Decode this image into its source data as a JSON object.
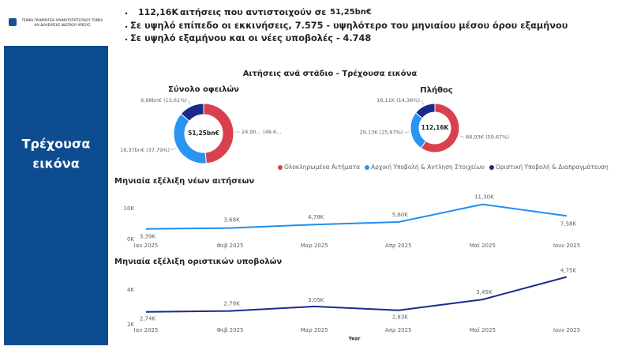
{
  "sidebar": {
    "logo_text": [
      "ΓΕΝΙΚΗ ΓΡΑΜΜΑΤΕΙΑ ΧΡΗΜΑΤΟΠΙΣΤΩΤΙΚΟΥ ΤΟΜΕΑ",
      "ΚΑΙ ΔΙΑΧΕΙΡΙΣΗΣ ΙΔΙΩΤΙΚΟΥ ΧΡΕΟΥΣ"
    ],
    "title": [
      "Τρέχουσα",
      "εικόνα"
    ]
  },
  "bullets": [
    [
      "112,16K",
      "αιτήσεις που αντιστοιχούν σε",
      "51,25bn€"
    ],
    [
      "Σε υψηλό επίπεδο οι εκκινήσεις, 7.575 -  υψηλότερο του μηνιαίου μέσου όρου εξαμήνου"
    ],
    [
      "Σε υψηλό εξαμήνου και οι νέες υποβολές - 4.748"
    ]
  ],
  "section_title": "Αιτήσεις ανά στάδιο - Τρέχουσα εικόνα",
  "chart_data": [
    {
      "type": "pie",
      "title": "Σύνολο οφειλών",
      "center_label": "51,25bn€",
      "categories": [
        "Ολοκληρωμένα Αιτήματα",
        "Αρχική Υποβολή & Αντληση Στοιχείων",
        "Οριστική Υποβολή & Διαπραγμάτευση"
      ],
      "values": [
        24.9,
        19.37,
        6.98
      ],
      "value_labels": [
        "24,90… (48,6…",
        "19,37bn€ (37,79%)",
        "6,98bn€ (13,61%)"
      ],
      "colors": [
        "#d9404f",
        "#2a95f0",
        "#1b2a8c"
      ]
    },
    {
      "type": "pie",
      "title": "Πλήθος",
      "center_label": "112,16K",
      "categories": [
        "Ολοκληρωμένα Αιτήματα",
        "Αρχική Υποβολή & Αντληση Στοιχείων",
        "Οριστική Υποβολή & Διαπραγμάτευση"
      ],
      "values": [
        66.93,
        29.13,
        16.11
      ],
      "value_labels": [
        "66,93K (59,67%)",
        "29,13K (25,97%)",
        "16,11K (14,36%)"
      ],
      "colors": [
        "#d9404f",
        "#2a95f0",
        "#1b2a8c"
      ]
    },
    {
      "type": "line",
      "title": "Μηνιαία εξέλιξη νέων αιτήσεων",
      "categories": [
        "Ιαν 2025",
        "Φεβ 2025",
        "Μαρ 2025",
        "Απρ 2025",
        "Μαϊ 2025",
        "Ιουν 2025"
      ],
      "values": [
        3.39,
        3.68,
        4.78,
        5.6,
        11.3,
        7.58
      ],
      "value_labels": [
        "3,39K",
        "3,68K",
        "4,78K",
        "5,60K",
        "11,30K",
        "7,58K"
      ],
      "color": "#1f8ef1",
      "ylim": [
        0,
        13
      ],
      "yticks": [
        {
          "value": 0,
          "label": "0K"
        },
        {
          "value": 10,
          "label": "10K"
        }
      ]
    },
    {
      "type": "line",
      "title": "Μηνιαία εξέλιξη οριστικών υποβολών",
      "x_label": "Year",
      "categories": [
        "Ιαν 2025",
        "Φεβ 2025",
        "Μαρ 2025",
        "Απρ 2025",
        "Μαϊ 2025",
        "Ιουν 2025"
      ],
      "values": [
        2.74,
        2.79,
        3.05,
        2.83,
        3.45,
        4.75
      ],
      "value_labels": [
        "2,74K",
        "2,79K",
        "3,05K",
        "2,83K",
        "3,45K",
        "4,75K"
      ],
      "color": "#1b2a8c",
      "ylim": [
        2,
        5
      ],
      "yticks": [
        {
          "value": 2,
          "label": "2K"
        },
        {
          "value": 4,
          "label": "4K"
        }
      ]
    }
  ]
}
